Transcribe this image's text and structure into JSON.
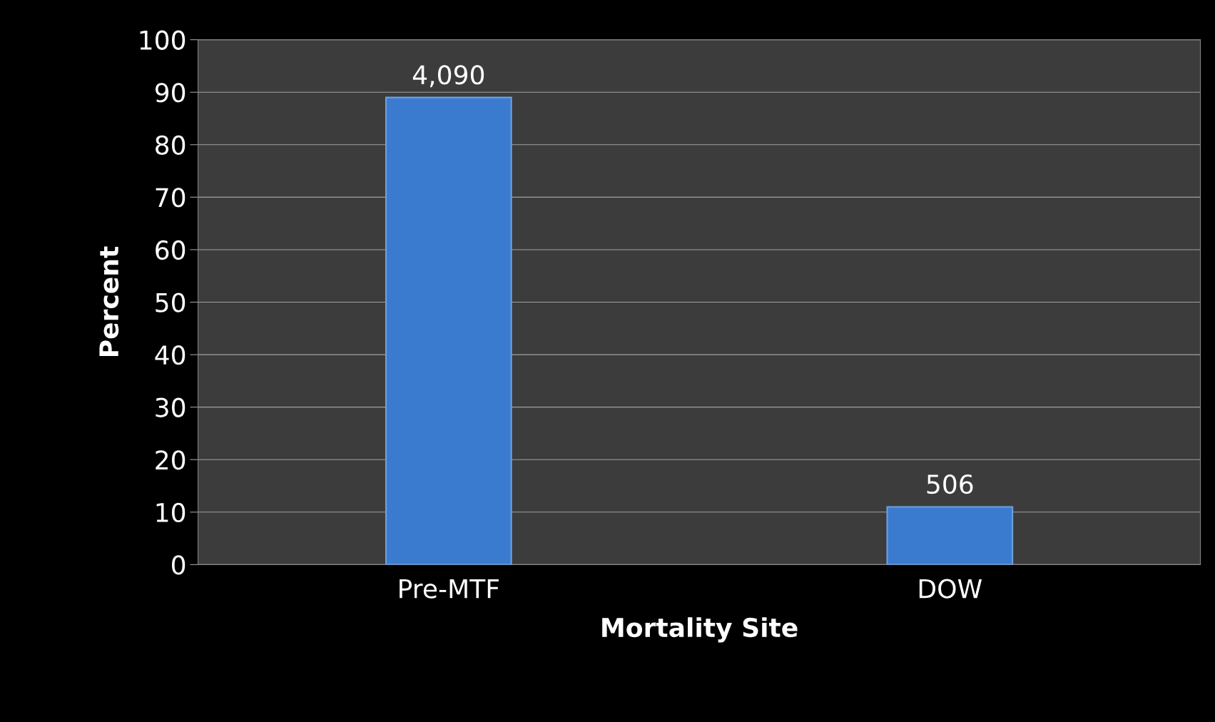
{
  "chart_data": {
    "type": "bar",
    "xlabel": "Mortality Site",
    "ylabel": "Percent",
    "categories": [
      "Pre-MTF",
      "DOW"
    ],
    "values": [
      89,
      11
    ],
    "annotations": [
      {
        "text": "4,090",
        "x": "Pre-MTF",
        "y": 89
      },
      {
        "text": "506",
        "x": "DOW",
        "y": 11
      }
    ],
    "color": "#3a7bd0",
    "ylim": [
      0,
      100
    ],
    "yticks": [
      0,
      10,
      20,
      30,
      40,
      50,
      60,
      70,
      80,
      90,
      100
    ],
    "grid": "y",
    "legend": false
  }
}
